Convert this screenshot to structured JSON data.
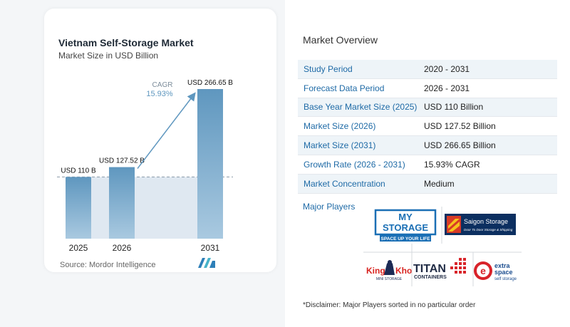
{
  "chart_data": {
    "type": "bar",
    "title": "Vietnam Self-Storage Market",
    "subtitle": "Market Size in USD Billion",
    "categories": [
      "2025",
      "2026",
      "2031"
    ],
    "values": [
      110,
      127.52,
      266.65
    ],
    "data_labels": [
      "USD 110 B",
      "USD 127.52 B",
      "USD 266.65 B"
    ],
    "annotation": {
      "label": "CAGR",
      "value": "15.93%"
    },
    "ylim": [
      0,
      266.65
    ],
    "colors": {
      "bar": "#5f97bf",
      "bar_light": "#a9c9e0",
      "shade": "#dfe8f1",
      "arrow": "#5f97bf"
    }
  },
  "source": "Source:  Mordor Intelligence",
  "overview": {
    "title": "Market Overview",
    "rows": [
      {
        "label": "Study Period",
        "value": "2020 - 2031"
      },
      {
        "label": "Forecast Data Period",
        "value": "2026 - 2031"
      },
      {
        "label": "Base Year Market Size (2025)",
        "value": "USD 110 Billion"
      },
      {
        "label": "Market Size (2026)",
        "value": "USD 127.52 Billion"
      },
      {
        "label": "Market Size (2031)",
        "value": "USD 266.65 Billion"
      },
      {
        "label": "Growth Rate (2026 - 2031)",
        "value": "15.93% CAGR"
      },
      {
        "label": "Market Concentration",
        "value": "Medium"
      }
    ]
  },
  "major_players": {
    "title": "Major Players",
    "logos": {
      "my_storage": {
        "line1": "MY",
        "line2": "STORAGE",
        "tagline": "SPACE UP YOUR LIFE"
      },
      "saigon_storage": {
        "name": "Saigon Storage",
        "tagline": "Door To Door Storage & Shipping"
      },
      "king_kho": {
        "part1": "King",
        "part2": "Kho",
        "tagline": "MINI STORAGE"
      },
      "titan": {
        "name": "TITAN",
        "sub": "CONTAINERS"
      },
      "extra_space": {
        "line1": "extra",
        "line2": "space",
        "tagline": "self storage"
      }
    }
  },
  "disclaimer": "*Disclaimer: Major Players sorted in no particular order"
}
